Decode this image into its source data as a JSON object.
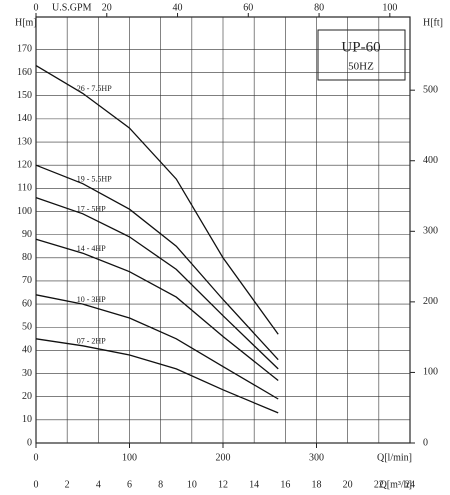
{
  "chart_data": {
    "type": "line",
    "x_label": "Q[l/min]",
    "x": [
      0,
      50,
      100,
      150,
      200,
      259
    ],
    "xlim": [
      0,
      400
    ],
    "xticks": [
      0,
      100,
      200,
      300
    ],
    "x2_label": "Q[m³/h]",
    "x2lim": [
      0,
      24
    ],
    "x2ticks": [
      0,
      2,
      4,
      6,
      8,
      10,
      12,
      14,
      16,
      18,
      20,
      22,
      24
    ],
    "x3_label": "U.S.GPM",
    "x3lim": [
      0,
      105.7
    ],
    "x3ticks": [
      0,
      20,
      40,
      60,
      80,
      100
    ],
    "y_label": "H[m]",
    "ylim": [
      0,
      184
    ],
    "yticks": [
      0,
      10,
      20,
      30,
      40,
      50,
      60,
      70,
      80,
      90,
      100,
      110,
      120,
      130,
      140,
      150,
      160,
      170
    ],
    "y2_label": "H[ft]",
    "y2lim": [
      0,
      603.7
    ],
    "y2ticks": [
      0,
      100,
      200,
      300,
      400,
      500
    ],
    "grid": true,
    "model": "UP-60",
    "frequency": "50HZ",
    "series": [
      {
        "name": "26 - 7.5HP",
        "color": "#111111",
        "values": [
          163,
          151,
          136,
          114,
          80,
          47
        ]
      },
      {
        "name": "19 - 5.5HP",
        "color": "#111111",
        "values": [
          120,
          112,
          101,
          85,
          62,
          36
        ]
      },
      {
        "name": "17 - 5HP",
        "color": "#111111",
        "values": [
          106,
          99,
          89,
          75,
          55,
          32
        ]
      },
      {
        "name": "14 - 4HP",
        "color": "#111111",
        "values": [
          88,
          82,
          74,
          63,
          46,
          27
        ]
      },
      {
        "name": "10 - 3HP",
        "color": "#111111",
        "values": [
          64,
          60,
          54,
          45,
          33,
          19
        ]
      },
      {
        "name": "07 - 2HP",
        "color": "#111111",
        "values": [
          45,
          42,
          38,
          32,
          23,
          13
        ]
      }
    ]
  }
}
